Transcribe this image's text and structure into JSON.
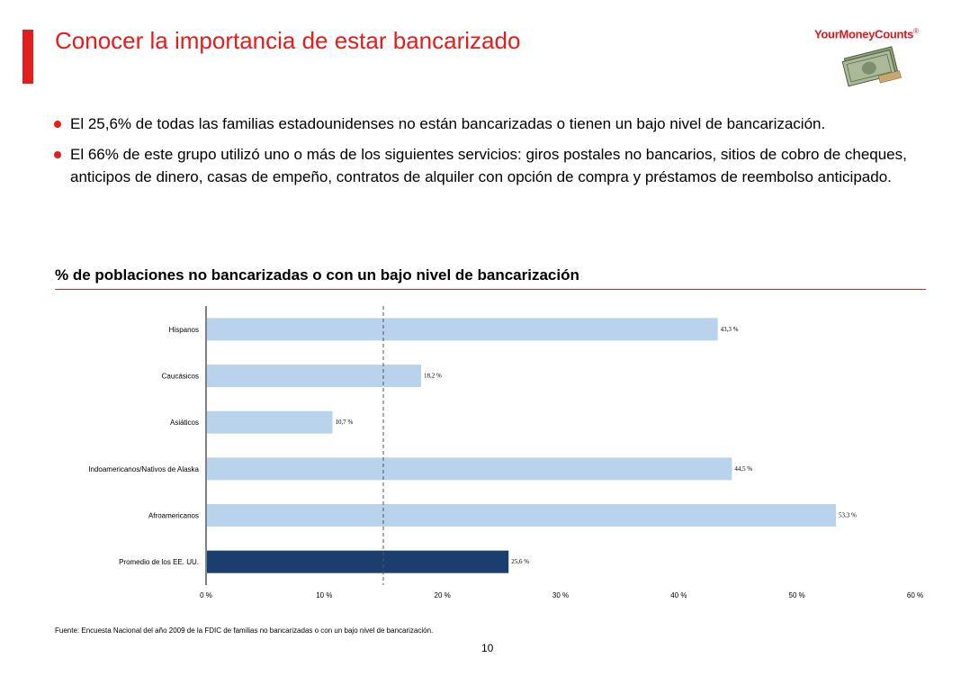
{
  "title": "Conocer la importancia de estar bancarizado",
  "logo": {
    "text": "YourMoneyCounts",
    "mark": "®"
  },
  "bullets": [
    "El 25,6% de todas las familias estadounidenses no están bancarizadas o tienen un bajo nivel de bancarización.",
    "El 66% de este grupo utilizó uno o más de los siguientes servicios: giros postales no bancarios, sitios de cobro de cheques, anticipos de dinero, casas de empeño, contratos de alquiler con opción de compra y préstamos de reembolso anticipado."
  ],
  "chart_heading": "% de poblaciones no bancarizadas o con un bajo nivel de bancarización",
  "chart_data": {
    "type": "bar",
    "orientation": "horizontal",
    "categories": [
      "Hispanos",
      "Caucásicos",
      "Asiáticos",
      "Indoamericanos/Nativos de Alaska",
      "Afroamericanos",
      "Promedio de los EE. UU."
    ],
    "values": [
      43.3,
      18.2,
      10.7,
      44.5,
      53.3,
      25.6
    ],
    "value_labels": [
      "43,3 %",
      "18,2 %",
      "10,7 %",
      "44,5 %",
      "53,3 %",
      "25,6 %"
    ],
    "xlim": [
      0,
      60
    ],
    "xticks": [
      0,
      10,
      20,
      30,
      40,
      50,
      60
    ],
    "xtick_labels": [
      "0 %",
      "10 %",
      "20 %",
      "30 %",
      "40 %",
      "50 %",
      "60 %"
    ],
    "reference_line": 15,
    "colors": {
      "default": "#b9d3ec",
      "highlight": "#1a3f6e",
      "reference": "#555555"
    },
    "highlight_index": 5,
    "grid": false
  },
  "source": "Fuente: Encuesta Nacional del año 2009 de la FDIC de familias no bancarizadas o con un bajo nivel de bancarización.",
  "page_number": "10"
}
